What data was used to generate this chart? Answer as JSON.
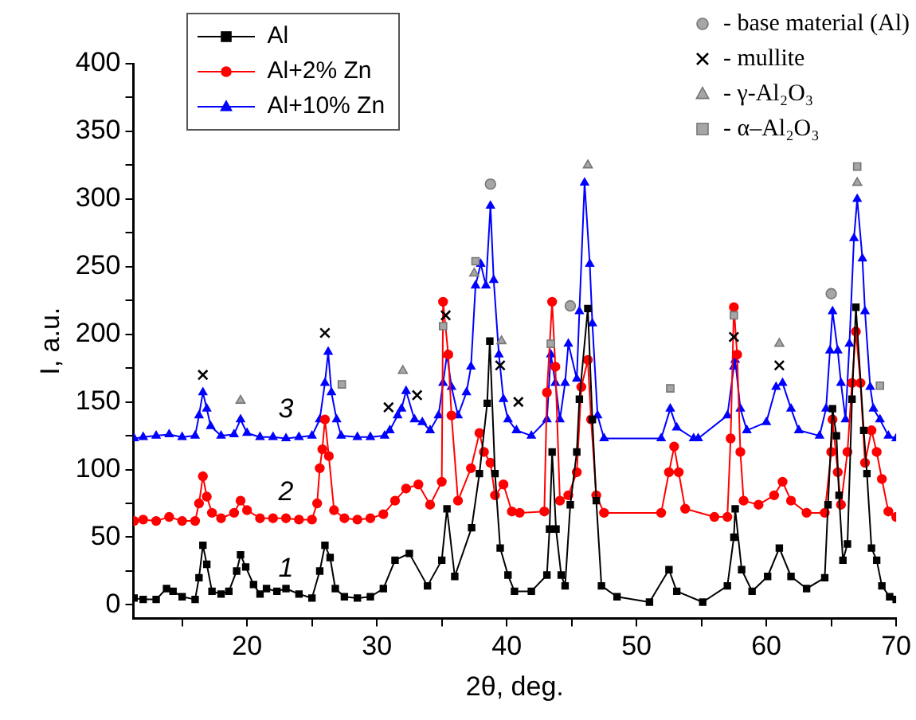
{
  "chart_data": {
    "type": "line",
    "xlabel": "2θ, deg.",
    "ylabel": "I, a.u.",
    "xlim": [
      11.25,
      70
    ],
    "ylim": [
      -10,
      400
    ],
    "xticks": [
      {
        "value": 15,
        "label": null
      },
      20,
      {
        "value": 25,
        "label": null
      },
      30,
      {
        "value": 35,
        "label": null
      },
      40,
      {
        "value": 45,
        "label": null
      },
      50,
      {
        "value": 55,
        "label": null
      },
      60,
      {
        "value": 65,
        "label": null
      },
      70
    ],
    "yticks": [
      0,
      {
        "value": 25,
        "label": null
      },
      50,
      {
        "value": 75,
        "label": null
      },
      100,
      {
        "value": 125,
        "label": null
      },
      150,
      {
        "value": 175,
        "label": null
      },
      200,
      {
        "value": 225,
        "label": null
      },
      250,
      {
        "value": 275,
        "label": null
      },
      300,
      {
        "value": 325,
        "label": null
      },
      350,
      {
        "value": 375,
        "label": null
      },
      400
    ],
    "grid": false,
    "legend": "top",
    "series": [
      {
        "name": "Al",
        "marker": "square",
        "color": "#000000",
        "x": [
          11.3,
          12,
          13,
          13.8,
          14.3,
          15,
          16,
          16.3,
          16.6,
          16.9,
          17.3,
          18,
          18.6,
          19.2,
          19.5,
          19.9,
          20.5,
          21,
          21.5,
          22.3,
          23,
          24,
          25,
          25.6,
          26.0,
          26.4,
          26.8,
          27.5,
          28.5,
          29.5,
          30.5,
          31.4,
          32.5,
          33.9,
          35.0,
          35.4,
          36.0,
          37.3,
          37.9,
          38.5,
          38.7,
          39.1,
          39.5,
          40.1,
          40.6,
          41.9,
          43.1,
          43.3,
          43.5,
          43.8,
          44.2,
          44.5,
          44.9,
          45.4,
          45.6,
          46.25,
          46.6,
          46.9,
          47.3,
          48.5,
          51.0,
          52.5,
          53.1,
          55.1,
          57.0,
          57.5,
          57.6,
          58.1,
          58.9,
          60.1,
          61.0,
          61.9,
          63.1,
          64.5,
          64.75,
          65.1,
          65.4,
          65.6,
          65.9,
          66.25,
          66.6,
          66.9,
          67.5,
          67.75,
          68.1,
          68.5,
          68.9,
          69.5,
          70
        ],
        "values": [
          5,
          4,
          4,
          12,
          10,
          6,
          4,
          20,
          44,
          30,
          10,
          8,
          10,
          25,
          37,
          28,
          15,
          8,
          12,
          10,
          12,
          8,
          5,
          25,
          44,
          35,
          12,
          6,
          5,
          6,
          12,
          33,
          38,
          14,
          33,
          71,
          21,
          57,
          97,
          149,
          195,
          97,
          42,
          22,
          10,
          10,
          22,
          56,
          113,
          56,
          22,
          14,
          74,
          113,
          152,
          219,
          137,
          77,
          14,
          6,
          2,
          26,
          10,
          2,
          14,
          50,
          71,
          26,
          10,
          21,
          42,
          21,
          12,
          20,
          74,
          145,
          125,
          81,
          33,
          45,
          152,
          220,
          129,
          97,
          42,
          33,
          14,
          6,
          4
        ]
      },
      {
        "name": "Al+2% Zn",
        "marker": "circle",
        "color": "#ff0000",
        "x": [
          11.3,
          12,
          13,
          14,
          15,
          16,
          16.3,
          16.6,
          16.9,
          17.3,
          18,
          19,
          19.5,
          20,
          21,
          22,
          23,
          24,
          25,
          25.4,
          25.6,
          25.8,
          26.0,
          26.3,
          26.7,
          27.5,
          28.5,
          29.5,
          30.5,
          31.4,
          32.25,
          33.2,
          34.1,
          35.0,
          35.1,
          35.5,
          35.75,
          36.25,
          37.25,
          37.9,
          38.25,
          38.75,
          39.1,
          39.75,
          40.4,
          41.0,
          42.9,
          43.1,
          43.5,
          43.75,
          44.1,
          44.75,
          45.4,
          45.75,
          46.25,
          46.5,
          46.9,
          47.5,
          51.9,
          52.5,
          52.9,
          53.25,
          53.75,
          56.0,
          57.0,
          57.25,
          57.5,
          57.75,
          58.0,
          58.25,
          59.4,
          60.6,
          61.25,
          61.9,
          63.1,
          64.5,
          65.0,
          65.1,
          65.5,
          65.75,
          66.25,
          66.6,
          66.9,
          67.25,
          67.6,
          68.1,
          68.5,
          68.9,
          69.4,
          70
        ],
        "values": [
          62,
          63,
          62,
          65,
          62,
          62,
          75,
          95,
          80,
          68,
          64,
          68,
          77,
          70,
          64,
          64,
          64,
          63,
          63,
          75,
          101,
          115,
          137,
          110,
          70,
          64,
          63,
          64,
          67,
          77,
          86,
          89,
          74,
          91,
          224,
          185,
          140,
          77,
          101,
          127,
          113,
          105,
          81,
          89,
          69,
          68,
          69,
          157,
          224,
          176,
          77,
          81,
          98,
          161,
          181,
          137,
          81,
          68,
          68,
          98,
          117,
          98,
          71,
          65,
          65,
          123,
          220,
          185,
          113,
          77,
          74,
          81,
          91,
          77,
          68,
          68,
          113,
          137,
          98,
          74,
          113,
          164,
          202,
          164,
          105,
          129,
          113,
          93,
          69,
          65
        ]
      },
      {
        "name": "Al+10% Zn",
        "marker": "triangle",
        "color": "#0000ff",
        "x": [
          11.3,
          12,
          13,
          14,
          15,
          16,
          16.3,
          16.6,
          16.9,
          17.2,
          18,
          19,
          19.5,
          20,
          21,
          22,
          23,
          24,
          25,
          25.6,
          26.0,
          26.25,
          26.5,
          26.9,
          27.25,
          28.5,
          29.5,
          30.6,
          31.0,
          31.6,
          31.9,
          32.25,
          32.9,
          33.5,
          34.1,
          34.75,
          35.1,
          35.4,
          35.75,
          36.25,
          36.9,
          37.25,
          37.6,
          38.0,
          38.4,
          38.75,
          39.0,
          39.4,
          39.75,
          40.1,
          40.75,
          41.9,
          43.1,
          43.4,
          43.75,
          44.1,
          44.5,
          44.75,
          45.4,
          45.6,
          46.0,
          46.4,
          46.6,
          47.0,
          47.5,
          51.9,
          52.6,
          53.1,
          54.4,
          54.75,
          57.0,
          57.5,
          57.6,
          58.0,
          58.5,
          60.0,
          60.75,
          61.25,
          61.9,
          62.5,
          64.1,
          64.6,
          64.9,
          65.1,
          65.5,
          65.75,
          66.1,
          66.4,
          66.75,
          67.0,
          67.4,
          67.6,
          68.0,
          68.25,
          68.75,
          69.4,
          70
        ],
        "values": [
          123,
          124,
          125,
          126,
          124,
          125,
          140,
          157,
          145,
          132,
          125,
          126,
          137,
          127,
          124,
          124,
          123,
          124,
          125,
          137,
          164,
          187,
          157,
          137,
          125,
          124,
          124,
          125,
          129,
          140,
          145,
          158,
          137,
          135,
          129,
          140,
          164,
          185,
          161,
          140,
          157,
          176,
          236,
          252,
          236,
          295,
          240,
          185,
          152,
          137,
          129,
          125,
          137,
          185,
          164,
          137,
          164,
          193,
          167,
          217,
          312,
          252,
          208,
          140,
          123,
          123,
          145,
          131,
          123,
          123,
          140,
          176,
          181,
          145,
          129,
          135,
          161,
          164,
          145,
          129,
          125,
          145,
          188,
          217,
          188,
          164,
          137,
          193,
          271,
          300,
          256,
          217,
          161,
          145,
          137,
          125,
          123
        ]
      },
      {
        "name": "- base material (Al)",
        "type": "scatter",
        "marker": "circle",
        "color": "#a6a6a6",
        "x": [
          38.75,
          44.9,
          65.0
        ],
        "values": [
          311,
          221,
          230
        ]
      },
      {
        "name": "- mullite",
        "type": "scatter",
        "marker": "cross",
        "color": "#000000",
        "x": [
          16.6,
          26.0,
          30.9,
          33.1,
          35.3,
          39.5,
          40.9,
          57.5,
          61.0
        ],
        "values": [
          170,
          201,
          146,
          155,
          214,
          177,
          150,
          198,
          177
        ]
      },
      {
        "name": "- γ-Al₂O₃",
        "type": "scatter",
        "marker": "triangle",
        "color": "#a6a6a6",
        "x": [
          19.5,
          32.0,
          37.5,
          39.6,
          46.25,
          61.0,
          67.0
        ],
        "values": [
          151,
          173,
          245,
          195,
          325,
          193,
          312
        ]
      },
      {
        "name": "- α–Al₂O₃",
        "type": "scatter",
        "marker": "square",
        "color": "#a6a6a6",
        "x": [
          27.3,
          35.1,
          37.6,
          43.4,
          52.6,
          57.5,
          67.0,
          68.75
        ],
        "values": [
          163,
          206,
          254,
          193,
          160,
          214,
          324,
          162
        ]
      }
    ],
    "annotations": [
      "1",
      "2",
      "3"
    ]
  }
}
